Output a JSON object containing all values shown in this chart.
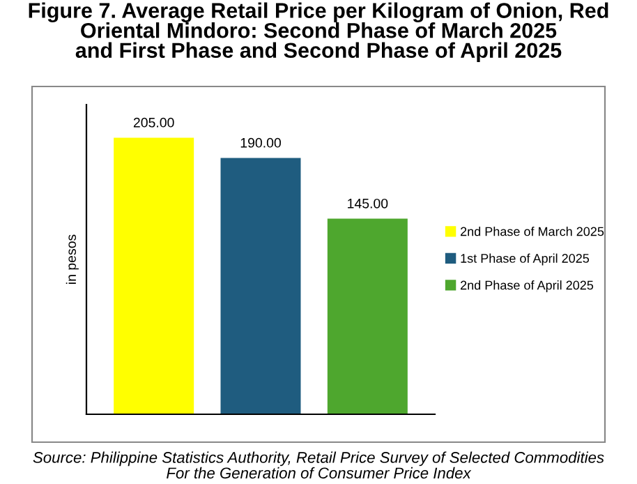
{
  "chart_data": {
    "type": "bar",
    "title": "Figure 7. Average Retail Price per Kilogram of Onion, Red\nOriental Mindoro: Second Phase of March 2025\nand First Phase and Second Phase of April 2025",
    "ylabel": "in pesos",
    "categories": [
      null
    ],
    "series": [
      {
        "name": "2nd Phase of March 2025",
        "color": "#ffff00",
        "values": [
          205
        ],
        "value_labels": [
          "205.00"
        ]
      },
      {
        "name": "1st Phase of April 2025",
        "color": "#1f5c7f",
        "values": [
          190
        ],
        "value_labels": [
          "190.00"
        ]
      },
      {
        "name": "2nd Phase of April 2025",
        "color": "#4ea72e",
        "values": [
          145
        ],
        "value_labels": [
          "145.00"
        ]
      }
    ],
    "legend": "right",
    "grid": false,
    "annotations": [
      "Source: Philippine Statistics Authority, Retail Price Survey of Selected Commodities\nFor the Generation of Consumer Price Index"
    ]
  }
}
